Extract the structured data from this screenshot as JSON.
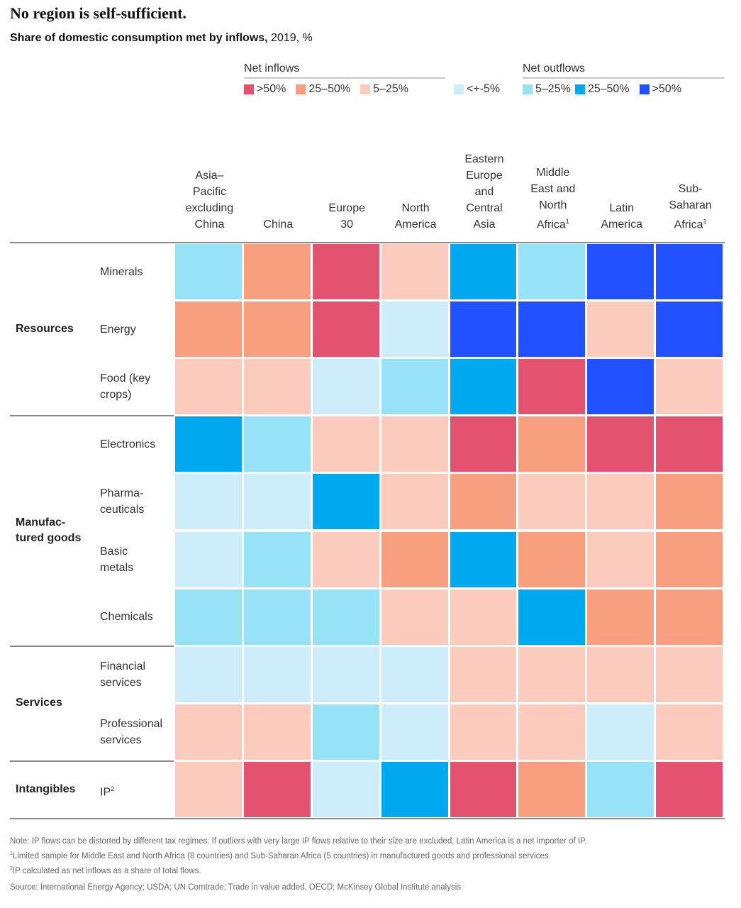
{
  "title": "No region is self-sufficient.",
  "subtitle": {
    "bold": "Share of domestic consumption met by inflows,",
    "rest": " 2019, %"
  },
  "legend": {
    "inflows_title": "Net inflows",
    "outflows_title": "Net outflows",
    "categories": {
      "in50": {
        "label": ">50%",
        "color": "#E3526E"
      },
      "in25": {
        "label": "25–50%",
        "color": "#F79F7F"
      },
      "in5": {
        "label": "5–25%",
        "color": "#FBCBBE"
      },
      "neutral": {
        "label": "<+-5%",
        "color": "#CDEDFB"
      },
      "out5": {
        "label": "5–25%",
        "color": "#98E2F8"
      },
      "out25": {
        "label": "25–50%",
        "color": "#00A8F0"
      },
      "out50": {
        "label": ">50%",
        "color": "#2251FF"
      }
    }
  },
  "chart_data": {
    "type": "heatmap",
    "title": "No region is self-sufficient.",
    "subtitle": "Share of domestic consumption met by inflows, 2019, %",
    "columns": [
      {
        "label": "Asia–Pacific excluding China",
        "lines": [
          "Asia–",
          "Pacific",
          "excluding",
          "China"
        ],
        "sup": ""
      },
      {
        "label": "China",
        "lines": [
          "China"
        ],
        "sup": ""
      },
      {
        "label": "Europe 30",
        "lines": [
          "Europe",
          "30"
        ],
        "sup": ""
      },
      {
        "label": "North America",
        "lines": [
          "North",
          "America"
        ],
        "sup": ""
      },
      {
        "label": "Eastern Europe and Central Asia",
        "lines": [
          "Eastern",
          "Europe",
          "and",
          "Central",
          "Asia"
        ],
        "sup": ""
      },
      {
        "label": "Middle East and North Africa",
        "lines": [
          "Middle",
          "East and",
          "North",
          "Africa"
        ],
        "sup": "1"
      },
      {
        "label": "Latin America",
        "lines": [
          "Latin",
          "America"
        ],
        "sup": ""
      },
      {
        "label": "Sub-Saharan Africa",
        "lines": [
          "Sub-",
          "Saharan",
          "Africa"
        ],
        "sup": "1"
      }
    ],
    "groups": [
      {
        "label": "Resources",
        "lines": [
          "Resources"
        ],
        "rows": [
          0,
          1,
          2
        ]
      },
      {
        "label": "Manufactured goods",
        "lines": [
          "Manufac-",
          "tured goods"
        ],
        "rows": [
          3,
          4,
          5,
          6
        ]
      },
      {
        "label": "Services",
        "lines": [
          "Services"
        ],
        "rows": [
          7,
          8
        ]
      },
      {
        "label": "Intangibles",
        "lines": [
          "Intangibles"
        ],
        "rows": [
          9
        ]
      }
    ],
    "rows": [
      {
        "label": "Minerals",
        "lines": [
          "Minerals"
        ],
        "sup": "",
        "values": [
          "out5",
          "in25",
          "in50",
          "in5",
          "out25",
          "out5",
          "out50",
          "out50"
        ]
      },
      {
        "label": "Energy",
        "lines": [
          "Energy"
        ],
        "sup": "",
        "values": [
          "in25",
          "in25",
          "in50",
          "neutral",
          "out50",
          "out50",
          "in5",
          "out50"
        ]
      },
      {
        "label": "Food (key crops)",
        "lines": [
          "Food (key",
          "crops)"
        ],
        "sup": "",
        "values": [
          "in5",
          "in5",
          "neutral",
          "out5",
          "out25",
          "in50",
          "out50",
          "in5"
        ]
      },
      {
        "label": "Electronics",
        "lines": [
          "Electronics"
        ],
        "sup": "",
        "values": [
          "out25",
          "out5",
          "in5",
          "in5",
          "in50",
          "in25",
          "in50",
          "in50"
        ]
      },
      {
        "label": "Pharmaceuticals",
        "lines": [
          "Pharma-",
          "ceuticals"
        ],
        "sup": "",
        "values": [
          "neutral",
          "neutral",
          "out25",
          "in5",
          "in25",
          "in5",
          "in5",
          "in25"
        ]
      },
      {
        "label": "Basic metals",
        "lines": [
          "Basic",
          "metals"
        ],
        "sup": "",
        "values": [
          "neutral",
          "out5",
          "in5",
          "in25",
          "out25",
          "in25",
          "in5",
          "in25"
        ]
      },
      {
        "label": "Chemicals",
        "lines": [
          "Chemicals"
        ],
        "sup": "",
        "values": [
          "out5",
          "out5",
          "out5",
          "in5",
          "in5",
          "out25",
          "in25",
          "in25"
        ]
      },
      {
        "label": "Financial services",
        "lines": [
          "Financial",
          "services"
        ],
        "sup": "",
        "values": [
          "neutral",
          "neutral",
          "neutral",
          "neutral",
          "in5",
          "in5",
          "in5",
          "in5"
        ]
      },
      {
        "label": "Professional services",
        "lines": [
          "Professional",
          "services"
        ],
        "sup": "",
        "values": [
          "in5",
          "in5",
          "out5",
          "neutral",
          "in5",
          "in5",
          "neutral",
          "in5"
        ]
      },
      {
        "label": "IP",
        "lines": [
          "IP"
        ],
        "sup": "2",
        "values": [
          "in5",
          "in50",
          "neutral",
          "out25",
          "in50",
          "in25",
          "out5",
          "in50"
        ]
      }
    ],
    "legend_placement": "top-right"
  },
  "footnotes": {
    "note": "Note: IP flows can be distorted by different tax regimes. If outliers with very large IP flows relative to their size are excluded, Latin America is a net importer of IP.",
    "fn1_mark": "1",
    "fn1": "Limited sample for Middle East and North Africa (8 countries) and Sub-Saharan Africa (5 countries) in manufactured goods and professional services.",
    "fn2_mark": "2",
    "fn2": "IP calculated as net inflows as a share of total flows.",
    "source": "Source: International Energy Agency; USDA; UN Comtrade; Trade in value added, OECD; McKinsey Global Institute analysis"
  }
}
